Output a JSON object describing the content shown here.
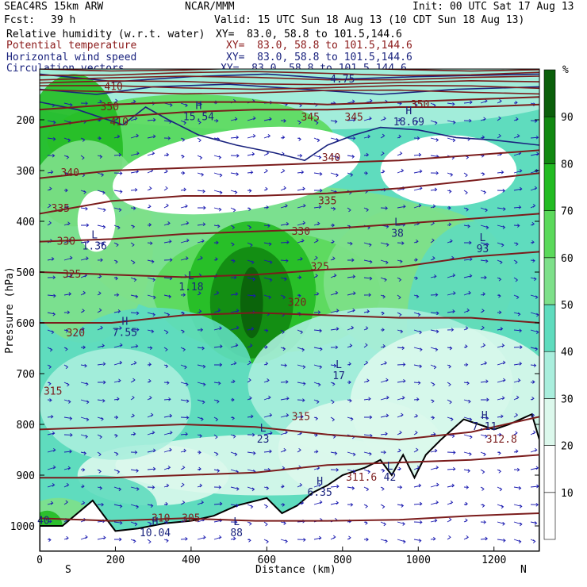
{
  "header": {
    "model": "SEAC4RS 15km ARW",
    "org": "NCAR/MMM",
    "init": "Init: 00 UTC Sat 17 Aug 13",
    "fcst_label": "Fcst:",
    "fcst_value": "39 h",
    "valid": "Valid: 15 UTC Sun 18 Aug 13 (10 CDT Sun 18 Aug 13)"
  },
  "fields": [
    {
      "name": "Relative humidity (w.r.t. water)",
      "xy": "XY=  83.0, 58.8 to 101.5,144.6",
      "color": "#000000"
    },
    {
      "name": "Potential temperature",
      "xy": "XY=  83.0, 58.8 to 101.5,144.6",
      "color": "#8b1a1a"
    },
    {
      "name": "Horizontal wind speed",
      "xy": "XY=  83.0, 58.8 to 101.5,144.6",
      "color": "#1a237e"
    },
    {
      "name": "Circulation vectors",
      "xy": "XY=  83.0, 58.8 to 101.5,144.6",
      "color": "#1a237e"
    }
  ],
  "colors": {
    "theta_contour": "#7b1c1c",
    "wind_contour": "#1a237e",
    "vectors": "#1a1ab0",
    "terrain": "#000000"
  },
  "chart_data": {
    "type": "heatmap",
    "xlabel": "Distance (km)",
    "ylabel": "Pressure (hPa)",
    "xlim": [
      0,
      1320
    ],
    "ylim": [
      1050,
      100
    ],
    "x_ticks": [
      0,
      200,
      400,
      600,
      800,
      1000,
      1200
    ],
    "y_ticks": [
      200,
      300,
      400,
      500,
      600,
      700,
      800,
      900,
      1000
    ],
    "x_end_labels": {
      "left": "S",
      "right": "N"
    },
    "colorbar": {
      "unit": "%",
      "levels": [
        10,
        20,
        30,
        40,
        50,
        60,
        70,
        80,
        90
      ],
      "colors": [
        "#ffffff",
        "#ffffff",
        "#dcf8ec",
        "#aaeedd",
        "#5fdcbe",
        "#7ee08a",
        "#5bd95b",
        "#22bb22",
        "#118811",
        "#0b5f0b"
      ]
    },
    "theta_isentropes": [
      {
        "label": "305",
        "p": [
          985,
          990,
          985,
          990,
          990,
          988,
          980,
          975
        ]
      },
      {
        "label": "310",
        "p": [
          905,
          905,
          900,
          895,
          880,
          875,
          870,
          860
        ]
      },
      {
        "label": "315",
        "p": [
          810,
          805,
          800,
          805,
          820,
          830,
          815,
          785
        ]
      },
      {
        "label": "320",
        "p": [
          600,
          600,
          585,
          580,
          585,
          590,
          590,
          600
        ]
      },
      {
        "label": "325",
        "p": [
          500,
          505,
          510,
          505,
          495,
          490,
          470,
          460
        ]
      },
      {
        "label": "330",
        "p": [
          440,
          435,
          425,
          420,
          415,
          405,
          395,
          385
        ]
      },
      {
        "label": "335",
        "p": [
          385,
          360,
          350,
          350,
          345,
          335,
          320,
          305
        ]
      },
      {
        "label": "340",
        "p": [
          315,
          300,
          295,
          290,
          285,
          280,
          270,
          260
        ]
      },
      {
        "label": "345",
        "p": [
          215,
          195,
          185,
          180,
          180,
          175,
          175,
          170
        ]
      },
      {
        "label": "350",
        "p": [
          180,
          170,
          165,
          165,
          170,
          165,
          160,
          155
        ]
      }
    ],
    "theta_x_km": [
      0,
      190,
      380,
      570,
      760,
      950,
      1140,
      1320
    ],
    "theta_labels": [
      {
        "text": "310",
        "x": 320,
        "p": 985
      },
      {
        "text": "305",
        "x": 400,
        "p": 985
      },
      {
        "text": "311.6",
        "x": 850,
        "p": 905
      },
      {
        "text": "312.8",
        "x": 1220,
        "p": 830
      },
      {
        "text": "315",
        "x": 35,
        "p": 735
      },
      {
        "text": "315",
        "x": 690,
        "p": 785
      },
      {
        "text": "320",
        "x": 95,
        "p": 620
      },
      {
        "text": "320",
        "x": 680,
        "p": 560
      },
      {
        "text": "325",
        "x": 85,
        "p": 505
      },
      {
        "text": "325",
        "x": 740,
        "p": 490
      },
      {
        "text": "330",
        "x": 70,
        "p": 440
      },
      {
        "text": "330",
        "x": 690,
        "p": 420
      },
      {
        "text": "335",
        "x": 55,
        "p": 375
      },
      {
        "text": "335",
        "x": 760,
        "p": 360
      },
      {
        "text": "340",
        "x": 80,
        "p": 305
      },
      {
        "text": "340",
        "x": 770,
        "p": 275
      },
      {
        "text": "345",
        "x": 715,
        "p": 195
      },
      {
        "text": "345",
        "x": 830,
        "p": 195
      },
      {
        "text": "350",
        "x": 185,
        "p": 175
      },
      {
        "text": "350",
        "x": 1005,
        "p": 170
      },
      {
        "text": "410",
        "x": 195,
        "p": 135
      },
      {
        "text": "410",
        "x": 210,
        "p": 205
      }
    ],
    "extrema": [
      {
        "kind": "L",
        "value": "1.36",
        "x": 145,
        "p": 440
      },
      {
        "kind": "L",
        "value": "1.18",
        "x": 400,
        "p": 520
      },
      {
        "kind": "H",
        "value": "7.55",
        "x": 225,
        "p": 610
      },
      {
        "kind": "L",
        "value": "38",
        "x": 945,
        "p": 415
      },
      {
        "kind": "L",
        "value": "93",
        "x": 1170,
        "p": 445
      },
      {
        "kind": "L",
        "value": "17",
        "x": 790,
        "p": 695
      },
      {
        "kind": "L",
        "value": "23",
        "x": 590,
        "p": 820
      },
      {
        "kind": "H",
        "value": "15.54",
        "x": 420,
        "p": 185
      },
      {
        "kind": "H",
        "value": "18.69",
        "x": 975,
        "p": 195
      },
      {
        "kind": "H",
        "value": "6.35",
        "x": 740,
        "p": 925
      },
      {
        "kind": "L",
        "value": "42",
        "x": 925,
        "p": 895
      },
      {
        "kind": "L",
        "value": "88",
        "x": 520,
        "p": 1005
      },
      {
        "kind": "H",
        "value": "10.04",
        "x": 305,
        "p": 1005
      },
      {
        "kind": "H",
        "value": "7.11",
        "x": 1175,
        "p": 795
      }
    ],
    "misc_labels": [
      {
        "text": "4.75",
        "x": 800,
        "p": 120
      },
      {
        "text": "40",
        "x": 10,
        "p": 990
      }
    ]
  }
}
